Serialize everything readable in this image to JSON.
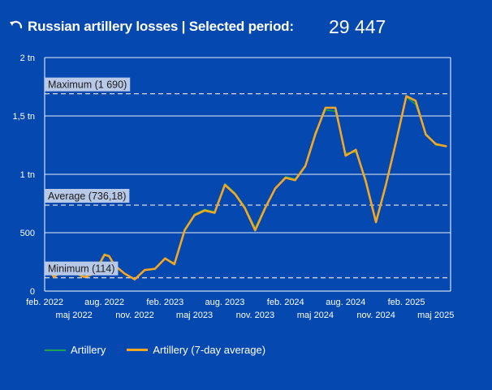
{
  "header": {
    "title": "Russian artillery losses | Selected period:",
    "total": "29 447"
  },
  "colors": {
    "background": "#0448b0",
    "artillery": "#1aa34a",
    "average": "#f5a623",
    "reference_line": "#d9d9d9"
  },
  "chart_data": {
    "type": "line",
    "title": "",
    "xlabel": "",
    "ylabel": "",
    "ylim": [
      0,
      2000
    ],
    "y_ticks": [
      {
        "value": 0,
        "label": "0"
      },
      {
        "value": 500,
        "label": "500"
      },
      {
        "value": 1000,
        "label": "1 tn"
      },
      {
        "value": 1500,
        "label": "1,5 tn"
      },
      {
        "value": 2000,
        "label": "2 tn"
      }
    ],
    "x_ticks": [
      {
        "label": "feb. 2022",
        "x": "2022-02-01",
        "row": 1
      },
      {
        "label": "maj 2022",
        "x": "2022-05-01",
        "row": 2
      },
      {
        "label": "aug. 2022",
        "x": "2022-08-01",
        "row": 1
      },
      {
        "label": "nov. 2022",
        "x": "2022-11-01",
        "row": 2
      },
      {
        "label": "feb. 2023",
        "x": "2023-02-01",
        "row": 1
      },
      {
        "label": "maj 2023",
        "x": "2023-05-01",
        "row": 2
      },
      {
        "label": "aug. 2023",
        "x": "2023-08-01",
        "row": 1
      },
      {
        "label": "nov. 2023",
        "x": "2023-11-01",
        "row": 2
      },
      {
        "label": "feb. 2024",
        "x": "2024-02-01",
        "row": 1
      },
      {
        "label": "maj 2024",
        "x": "2024-05-01",
        "row": 2
      },
      {
        "label": "aug. 2024",
        "x": "2024-08-01",
        "row": 1
      },
      {
        "label": "nov. 2024",
        "x": "2024-11-01",
        "row": 2
      },
      {
        "label": "feb. 2025",
        "x": "2025-02-01",
        "row": 1
      },
      {
        "label": "maj 2025",
        "x": "2025-05-01",
        "row": 2
      }
    ],
    "reference_lines": [
      {
        "label": "Maximum (1 690)",
        "value": 1690
      },
      {
        "label": "Average (736,18)",
        "value": 736.18
      },
      {
        "label": "Minimum (114)",
        "value": 114
      }
    ],
    "legend": {
      "placement": "bottom-left"
    },
    "series": [
      {
        "name": "Artillery",
        "color": "#1aa34a",
        "x": [
          "2022-02-15",
          "2022-03-01",
          "2022-04-01",
          "2022-05-01",
          "2022-06-01",
          "2022-07-01",
          "2022-08-01",
          "2022-08-15",
          "2022-09-01",
          "2022-10-01",
          "2022-11-01",
          "2022-12-01",
          "2023-01-01",
          "2023-02-01",
          "2023-03-01",
          "2023-04-01",
          "2023-05-01",
          "2023-06-01",
          "2023-07-01",
          "2023-08-01",
          "2023-09-01",
          "2023-10-01",
          "2023-11-01",
          "2023-12-01",
          "2024-01-01",
          "2024-02-01",
          "2024-03-01",
          "2024-04-01",
          "2024-05-01",
          "2024-06-01",
          "2024-07-01",
          "2024-08-01",
          "2024-09-01",
          "2024-10-01",
          "2024-11-01",
          "2024-12-01",
          "2025-01-01",
          "2025-02-01",
          "2025-03-01",
          "2025-04-01",
          "2025-05-01",
          "2025-06-01"
        ],
        "y": [
          180,
          120,
          200,
          160,
          120,
          150,
          320,
          300,
          230,
          150,
          100,
          180,
          190,
          280,
          240,
          530,
          660,
          700,
          680,
          920,
          840,
          720,
          540,
          720,
          880,
          980,
          960,
          1080,
          1360,
          1550,
          1540,
          1180,
          1190,
          960,
          600,
          920,
          1290,
          1660,
          1600,
          1350,
          1250,
          1240
        ]
      },
      {
        "name": "Artillery (7-day average)",
        "color": "#f5a623",
        "x": [
          "2022-02-15",
          "2022-03-01",
          "2022-04-01",
          "2022-05-01",
          "2022-06-01",
          "2022-07-01",
          "2022-08-01",
          "2022-08-15",
          "2022-09-01",
          "2022-10-01",
          "2022-11-01",
          "2022-12-01",
          "2023-01-01",
          "2023-02-01",
          "2023-03-01",
          "2023-04-01",
          "2023-05-01",
          "2023-06-01",
          "2023-07-01",
          "2023-08-01",
          "2023-09-01",
          "2023-10-01",
          "2023-11-01",
          "2023-12-01",
          "2024-01-01",
          "2024-02-01",
          "2024-03-01",
          "2024-04-01",
          "2024-05-01",
          "2024-06-01",
          "2024-07-01",
          "2024-08-01",
          "2024-09-01",
          "2024-10-01",
          "2024-11-01",
          "2024-12-01",
          "2025-01-01",
          "2025-02-01",
          "2025-03-01",
          "2025-04-01",
          "2025-05-01",
          "2025-06-01"
        ],
        "y": [
          180,
          120,
          190,
          160,
          120,
          150,
          310,
          300,
          220,
          150,
          100,
          180,
          190,
          280,
          230,
          520,
          650,
          690,
          670,
          910,
          830,
          710,
          520,
          710,
          880,
          970,
          950,
          1070,
          1340,
          1570,
          1570,
          1160,
          1210,
          940,
          590,
          910,
          1280,
          1670,
          1630,
          1340,
          1260,
          1240
        ]
      }
    ]
  }
}
